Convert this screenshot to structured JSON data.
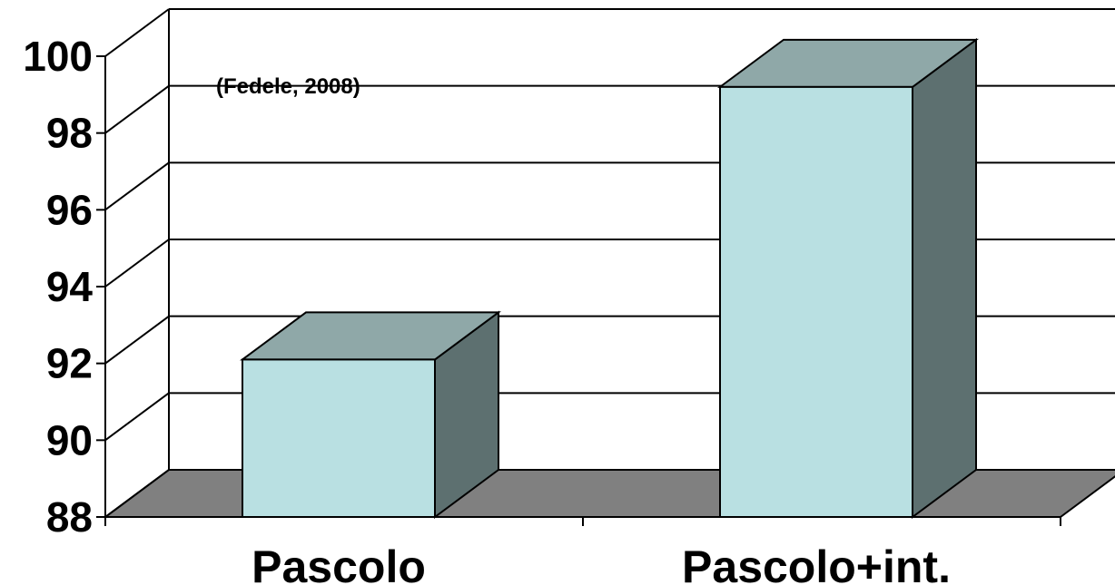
{
  "chart_data": {
    "type": "bar",
    "categories": [
      "Pascolo",
      "Pascolo+int."
    ],
    "values": [
      92.1,
      99.2
    ],
    "ylim": [
      88,
      100
    ],
    "yticks": [
      "88",
      "90",
      "92",
      "94",
      "96",
      "98",
      "100"
    ],
    "annotation": "(Fedele, 2008)",
    "grid": true,
    "legend": "none",
    "colors": {
      "bar_front": "#b9e0e2",
      "bar_top": "#8fa8a8",
      "bar_side": "#5d7070",
      "floor": "#808080",
      "wall": "#ffffff",
      "line": "#000000"
    }
  }
}
